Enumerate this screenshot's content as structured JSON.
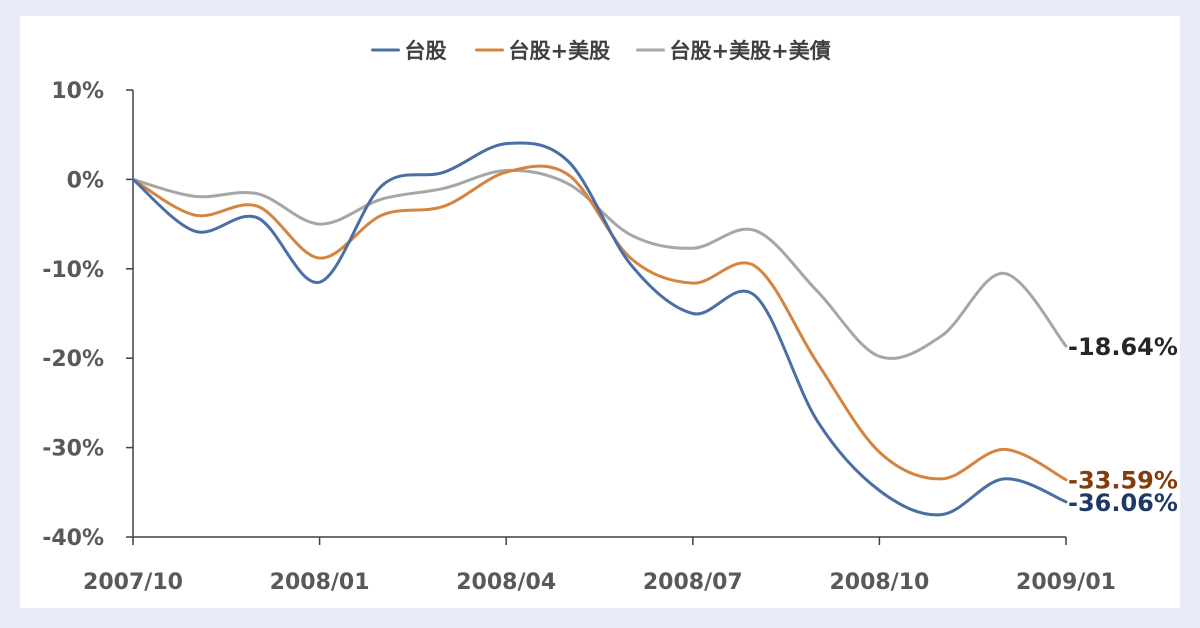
{
  "chart_data": {
    "type": "line",
    "x": [
      "2007/10",
      "2007/11",
      "2007/12",
      "2008/01",
      "2008/02",
      "2008/03",
      "2008/04",
      "2008/05",
      "2008/06",
      "2008/07",
      "2008/08",
      "2008/09",
      "2008/10",
      "2008/11",
      "2008/12",
      "2009/01"
    ],
    "xlabels": [
      "2007/10",
      "2008/01",
      "2008/04",
      "2008/07",
      "2008/10",
      "2009/01"
    ],
    "ylabels": [
      "10%",
      "0%",
      "-10%",
      "-20%",
      "-30%",
      "-40%"
    ],
    "yticks": [
      10,
      0,
      -10,
      -20,
      -30,
      -40
    ],
    "ylim": [
      -40,
      10
    ],
    "grid": false,
    "legend": "top",
    "series": [
      {
        "name": "台股",
        "color": "#4a6fa5",
        "values": [
          0,
          -5.8,
          -4.3,
          -11.5,
          -0.7,
          0.8,
          4.0,
          2.0,
          -9.5,
          -15.0,
          -13.0,
          -27.0,
          -34.8,
          -37.5,
          -33.5,
          -36.06
        ],
        "end_label": "-36.06%",
        "end_label_color": "#203864"
      },
      {
        "name": "台股+美股",
        "color": "#d4843e",
        "values": [
          0,
          -4.0,
          -3.0,
          -8.8,
          -4.0,
          -3.0,
          0.8,
          0.5,
          -8.8,
          -11.6,
          -9.7,
          -20.5,
          -30.5,
          -33.5,
          -30.2,
          -33.59
        ],
        "end_label": "-33.59%",
        "end_label_color": "#843c0c"
      },
      {
        "name": "台股+美股+美債",
        "color": "#a6a6a6",
        "values": [
          0,
          -1.9,
          -1.6,
          -5.0,
          -2.2,
          -1.0,
          1.0,
          -0.5,
          -6.2,
          -7.7,
          -5.7,
          -12.5,
          -19.8,
          -17.5,
          -10.5,
          -18.64
        ],
        "end_label": "-18.64%",
        "end_label_color": "#262626"
      }
    ]
  }
}
